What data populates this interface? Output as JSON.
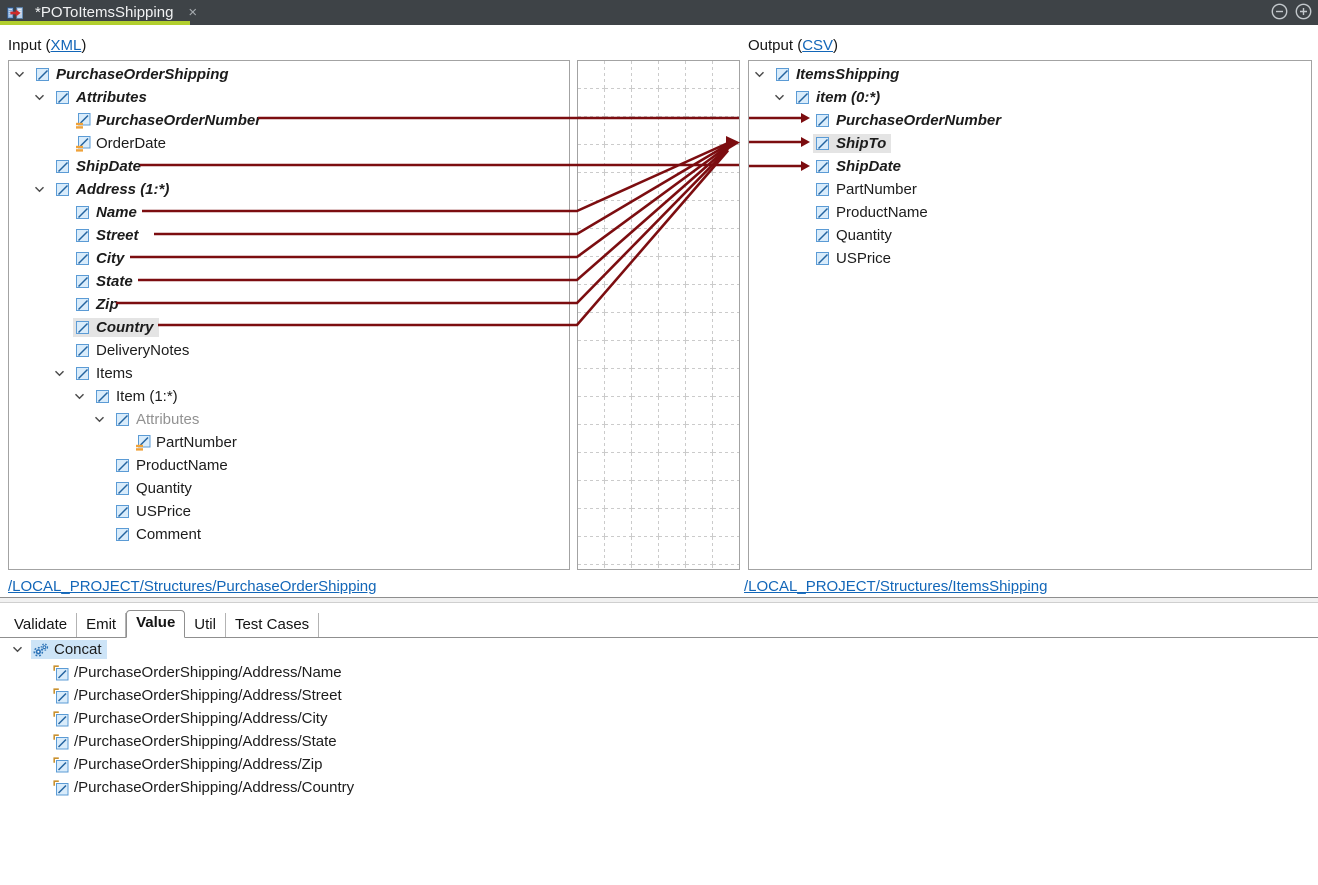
{
  "tab_bar": {
    "title": "*POToItemsShipping",
    "close": "×",
    "zoom_out": "−",
    "zoom_in": "+"
  },
  "headers": {
    "input_prefix": "Input (",
    "input_link": "XML",
    "input_suffix": ")",
    "output_prefix": "Output (",
    "output_link": "CSV",
    "output_suffix": ")"
  },
  "input_tree": [
    {
      "label": "PurchaseOrderShipping",
      "depth": 0,
      "chevron": true,
      "icon": "element",
      "style": "mapped"
    },
    {
      "label": "Attributes",
      "depth": 1,
      "chevron": true,
      "icon": "element",
      "style": "mapped"
    },
    {
      "label": "PurchaseOrderNumber",
      "depth": 2,
      "chevron": false,
      "icon": "attribute",
      "style": "mapped"
    },
    {
      "label": "OrderDate",
      "depth": 2,
      "chevron": false,
      "icon": "attribute",
      "style": "normal"
    },
    {
      "label": "ShipDate",
      "depth": 1,
      "chevron": false,
      "icon": "element",
      "style": "mapped"
    },
    {
      "label": "Address (1:*)",
      "depth": 1,
      "chevron": true,
      "icon": "element",
      "style": "mapped"
    },
    {
      "label": "Name",
      "depth": 2,
      "chevron": false,
      "icon": "element",
      "style": "mapped"
    },
    {
      "label": "Street",
      "depth": 2,
      "chevron": false,
      "icon": "element",
      "style": "mapped"
    },
    {
      "label": "City",
      "depth": 2,
      "chevron": false,
      "icon": "element",
      "style": "mapped"
    },
    {
      "label": "State",
      "depth": 2,
      "chevron": false,
      "icon": "element",
      "style": "mapped"
    },
    {
      "label": "Zip",
      "depth": 2,
      "chevron": false,
      "icon": "element",
      "style": "mapped"
    },
    {
      "label": "Country",
      "depth": 2,
      "chevron": false,
      "icon": "element",
      "style": "mapped",
      "selected": "gray"
    },
    {
      "label": "DeliveryNotes",
      "depth": 2,
      "chevron": false,
      "icon": "element",
      "style": "normal"
    },
    {
      "label": "Items",
      "depth": 2,
      "chevron": true,
      "icon": "element",
      "style": "normal"
    },
    {
      "label": "Item (1:*)",
      "depth": 3,
      "chevron": true,
      "icon": "element",
      "style": "normal"
    },
    {
      "label": "Attributes",
      "depth": 4,
      "chevron": true,
      "icon": "element",
      "style": "muted"
    },
    {
      "label": "PartNumber",
      "depth": 5,
      "chevron": false,
      "icon": "attribute",
      "style": "normal"
    },
    {
      "label": "ProductName",
      "depth": 4,
      "chevron": false,
      "icon": "element",
      "style": "normal"
    },
    {
      "label": "Quantity",
      "depth": 4,
      "chevron": false,
      "icon": "element",
      "style": "normal"
    },
    {
      "label": "USPrice",
      "depth": 4,
      "chevron": false,
      "icon": "element",
      "style": "normal"
    },
    {
      "label": "Comment",
      "depth": 4,
      "chevron": false,
      "icon": "element",
      "style": "normal"
    }
  ],
  "output_tree": [
    {
      "label": "ItemsShipping",
      "depth": 0,
      "chevron": true,
      "icon": "element",
      "style": "mapped"
    },
    {
      "label": "item (0:*)",
      "depth": 1,
      "chevron": true,
      "icon": "element",
      "style": "mapped"
    },
    {
      "label": "PurchaseOrderNumber",
      "depth": 2,
      "chevron": false,
      "icon": "element",
      "style": "mapped"
    },
    {
      "label": "ShipTo",
      "depth": 2,
      "chevron": false,
      "icon": "element",
      "style": "mapped",
      "selected": "gray"
    },
    {
      "label": "ShipDate",
      "depth": 2,
      "chevron": false,
      "icon": "element",
      "style": "mapped"
    },
    {
      "label": "PartNumber",
      "depth": 2,
      "chevron": false,
      "icon": "element",
      "style": "normal"
    },
    {
      "label": "ProductName",
      "depth": 2,
      "chevron": false,
      "icon": "element",
      "style": "normal"
    },
    {
      "label": "Quantity",
      "depth": 2,
      "chevron": false,
      "icon": "element",
      "style": "normal"
    },
    {
      "label": "USPrice",
      "depth": 2,
      "chevron": false,
      "icon": "element",
      "style": "normal"
    }
  ],
  "footer_links": {
    "input": "/LOCAL_PROJECT/Structures/PurchaseOrderShipping",
    "output": "/LOCAL_PROJECT/Structures/ItemsShipping"
  },
  "bottom_tabs": {
    "items": [
      "Validate",
      "Emit",
      "Value",
      "Util",
      "Test Cases"
    ],
    "active": "Value"
  },
  "value_panel": {
    "function": {
      "label": "Concat",
      "icon": "gears",
      "selected": "blue"
    },
    "arguments": [
      "/PurchaseOrderShipping/Address/Name",
      "/PurchaseOrderShipping/Address/Street",
      "/PurchaseOrderShipping/Address/City",
      "/PurchaseOrderShipping/Address/State",
      "/PurchaseOrderShipping/Address/Zip",
      "/PurchaseOrderShipping/Address/Country"
    ]
  },
  "mappings": [
    {
      "source": "PurchaseOrderNumber",
      "target": "PurchaseOrderNumber",
      "type": "direct"
    },
    {
      "source": "ShipDate",
      "target": "ShipDate",
      "type": "direct"
    },
    {
      "sources": [
        "Name",
        "Street",
        "City",
        "State",
        "Zip",
        "Country"
      ],
      "target": "ShipTo",
      "type": "Concat"
    }
  ],
  "colors": {
    "mapping_line": "#7c0d10",
    "tab_bar_bg": "#3e4347",
    "active_tab_underline": "#b2cf2e",
    "link": "#1266b8",
    "selection_gray": "#e4e4e4",
    "selection_blue": "#cde4f7"
  }
}
